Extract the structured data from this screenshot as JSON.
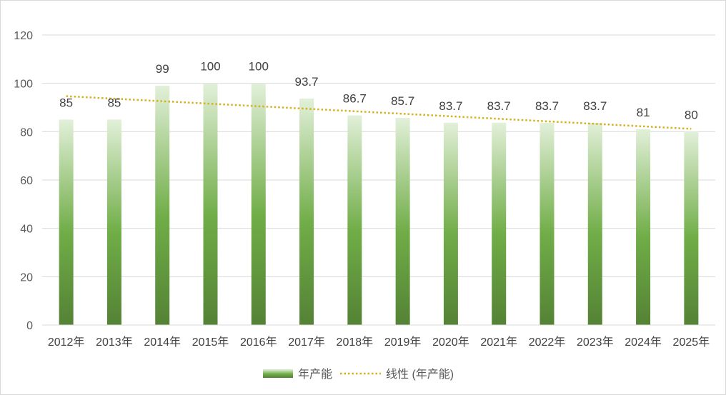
{
  "chart_data": {
    "type": "bar",
    "title": "",
    "xlabel": "",
    "ylabel": "",
    "categories": [
      "2012年",
      "2013年",
      "2014年",
      "2015年",
      "2016年",
      "2017年",
      "2018年",
      "2019年",
      "2020年",
      "2021年",
      "2022年",
      "2023年",
      "2024年",
      "2025年"
    ],
    "series": [
      {
        "name": "年产能",
        "values": [
          85,
          85,
          99,
          100,
          100,
          93.7,
          86.7,
          85.7,
          83.7,
          83.7,
          83.7,
          83.7,
          81,
          80
        ],
        "color_top": "#e2f0d9",
        "color_mid": "#70ad47",
        "color_bottom": "#548235"
      }
    ],
    "trendline": {
      "name": "线性 (年产能)",
      "type": "linear",
      "color": "#d6b01f"
    },
    "ylim": [
      0,
      120
    ],
    "yticks": [
      "0",
      "20",
      "40",
      "60",
      "80",
      "100",
      "120"
    ],
    "yticks_values": [
      0,
      20,
      40,
      60,
      80,
      100,
      120
    ],
    "grid": true,
    "legend_position": "bottom",
    "gridline_color": "#d9d9d9"
  }
}
